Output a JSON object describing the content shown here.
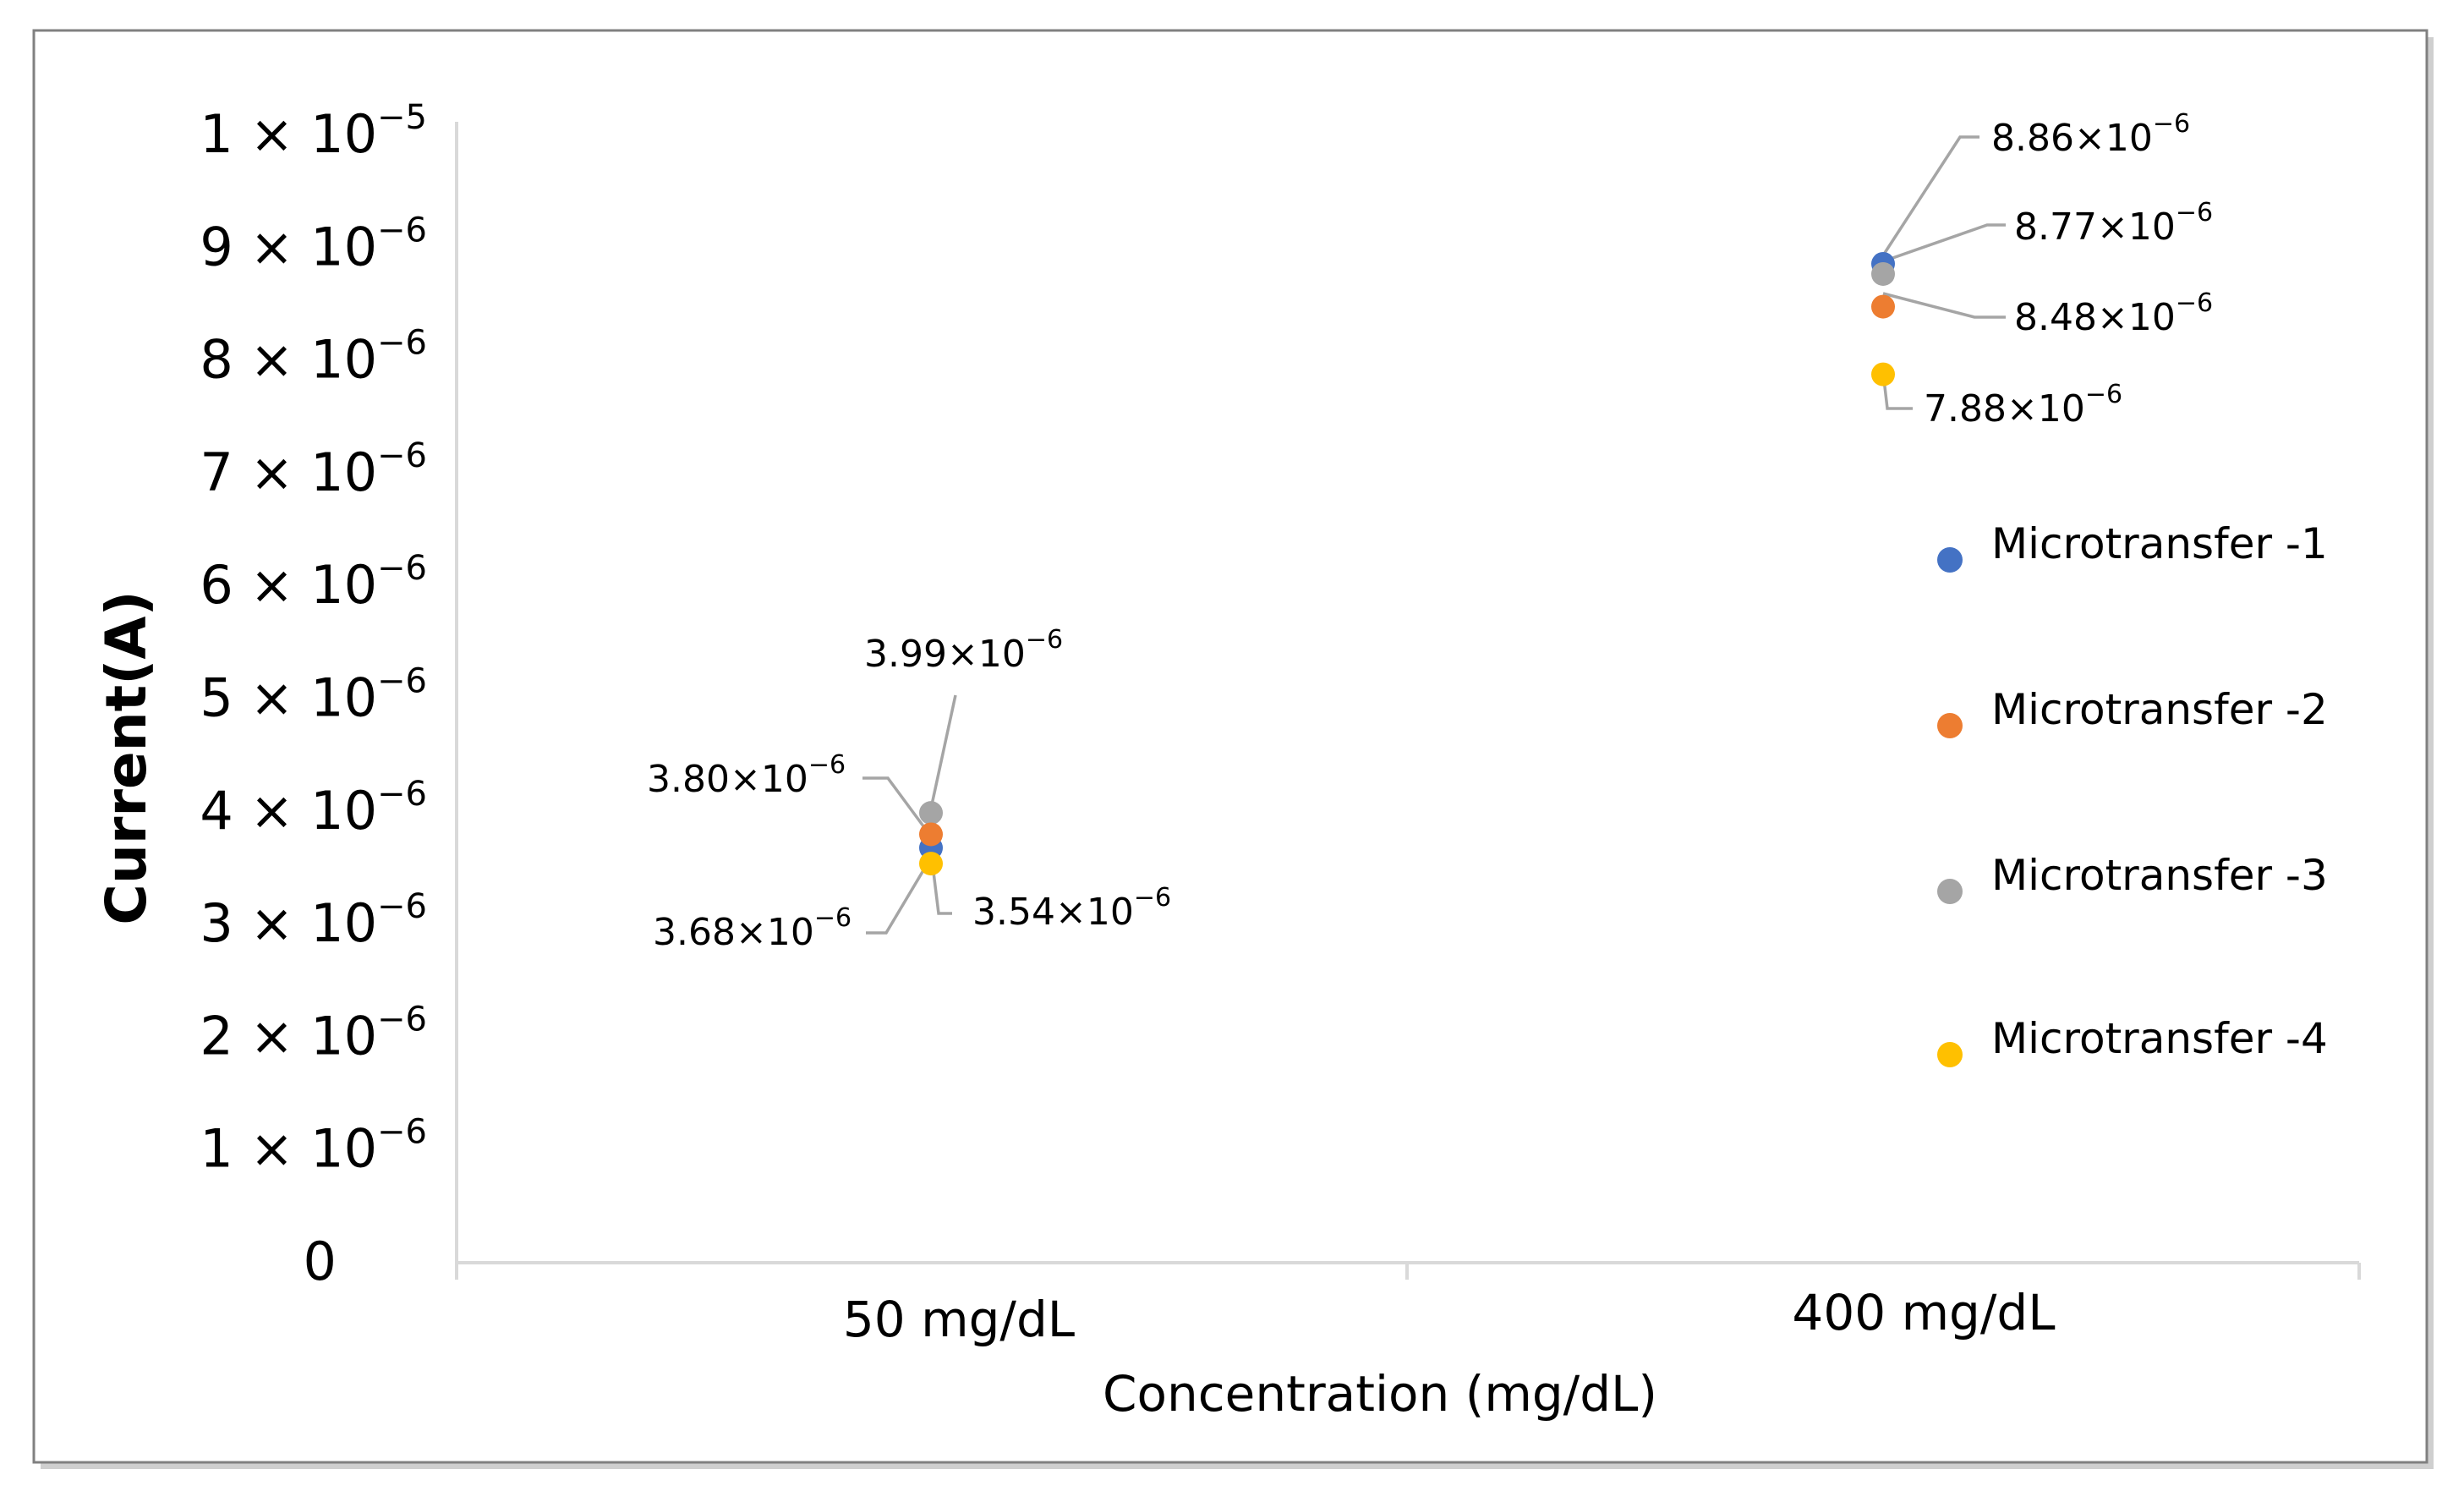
{
  "chart_data": {
    "type": "scatter",
    "title": "",
    "xlabel": "Concentration (mg/dL)",
    "ylabel": "Current(A)",
    "categories": [
      "50 mg/dL",
      "400 mg/dL"
    ],
    "ylim": [
      0,
      1e-05
    ],
    "grid": false,
    "legend_position": "right",
    "yticks": [
      {
        "value": 0,
        "mantissa": "0",
        "exponent": ""
      },
      {
        "value": 1e-06,
        "mantissa": "1",
        "exponent": "−6"
      },
      {
        "value": 2e-06,
        "mantissa": "2",
        "exponent": "−6"
      },
      {
        "value": 3e-06,
        "mantissa": "3",
        "exponent": "−6"
      },
      {
        "value": 4e-06,
        "mantissa": "4",
        "exponent": "−6"
      },
      {
        "value": 5e-06,
        "mantissa": "5",
        "exponent": "−6"
      },
      {
        "value": 6e-06,
        "mantissa": "6",
        "exponent": "−6"
      },
      {
        "value": 7e-06,
        "mantissa": "7",
        "exponent": "−6"
      },
      {
        "value": 8e-06,
        "mantissa": "8",
        "exponent": "−6"
      },
      {
        "value": 9e-06,
        "mantissa": "9",
        "exponent": "−6"
      },
      {
        "value": 1e-05,
        "mantissa": "1",
        "exponent": "−5"
      }
    ],
    "series": [
      {
        "name": "Microtransfer -1",
        "color": "#4472C4",
        "values": [
          3.68e-06,
          8.86e-06
        ]
      },
      {
        "name": "Microtransfer -2",
        "color": "#ED7D31",
        "values": [
          3.8e-06,
          8.48e-06
        ]
      },
      {
        "name": "Microtransfer -3",
        "color": "#A5A5A5",
        "values": [
          3.99e-06,
          8.77e-06
        ]
      },
      {
        "name": "Microtransfer -4",
        "color": "#FFC000",
        "values": [
          3.54e-06,
          7.88e-06
        ]
      }
    ],
    "data_labels": [
      {
        "series": 0,
        "category": 0,
        "mantissa": "3.68",
        "exponent": "−6"
      },
      {
        "series": 1,
        "category": 0,
        "mantissa": "3.80",
        "exponent": "−6"
      },
      {
        "series": 2,
        "category": 0,
        "mantissa": "3.99",
        "exponent": "−6"
      },
      {
        "series": 3,
        "category": 0,
        "mantissa": "3.54",
        "exponent": "−6"
      },
      {
        "series": 0,
        "category": 1,
        "mantissa": "8.86",
        "exponent": "−6"
      },
      {
        "series": 1,
        "category": 1,
        "mantissa": "8.48",
        "exponent": "−6"
      },
      {
        "series": 2,
        "category": 1,
        "mantissa": "8.77",
        "exponent": "−6"
      },
      {
        "series": 3,
        "category": 1,
        "mantissa": "7.88",
        "exponent": "−6"
      }
    ],
    "colors": {
      "leader_line": "#A5A5A5",
      "axis_line": "#D9D9D9",
      "frame": "#808080"
    }
  }
}
